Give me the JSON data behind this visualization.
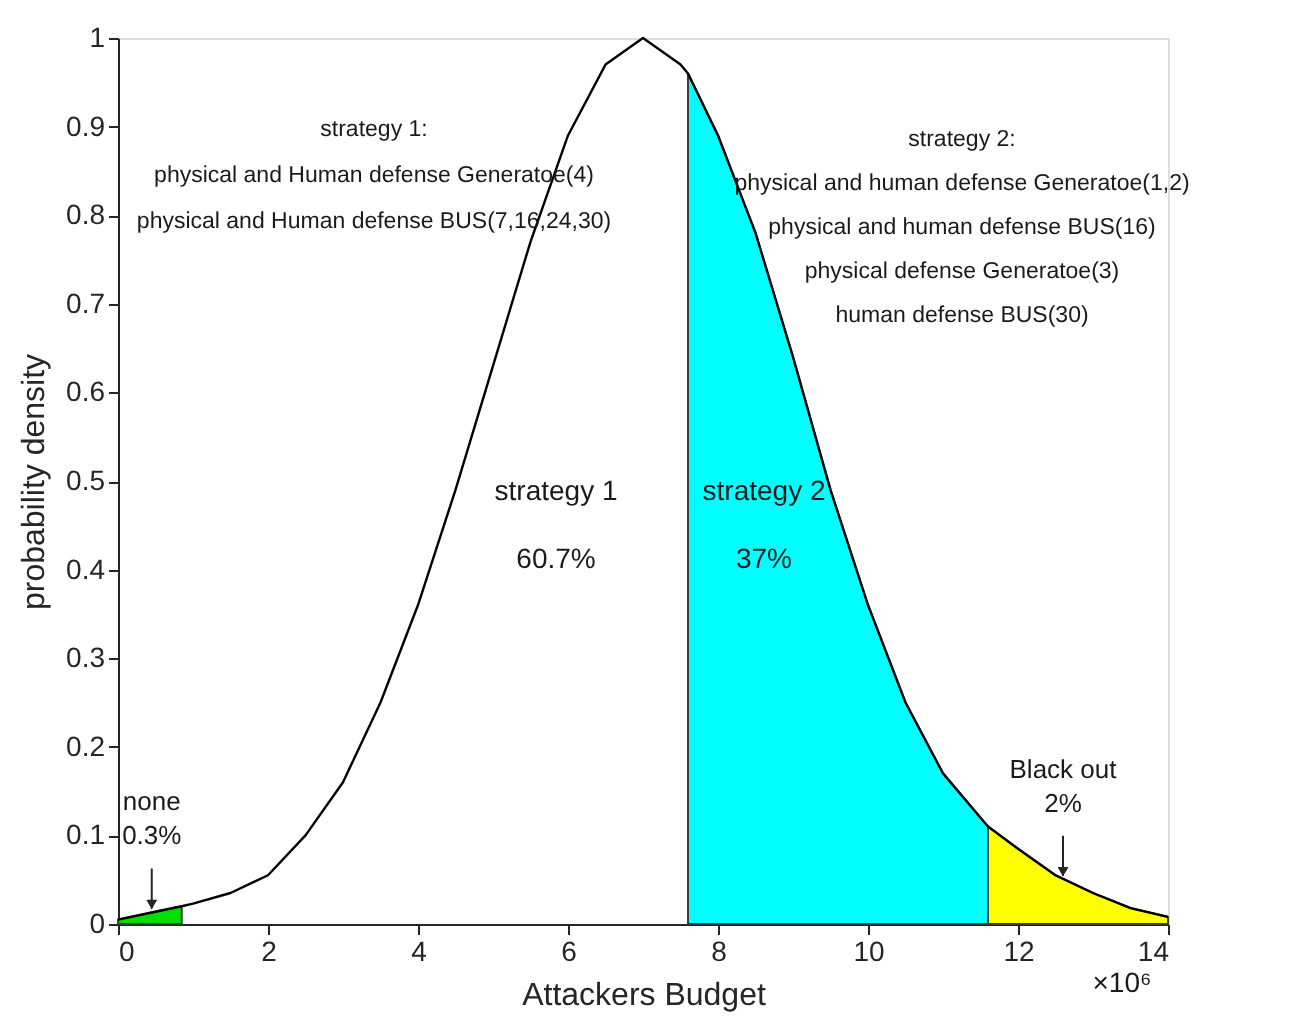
{
  "chart_data": {
    "type": "line",
    "xlabel": "Attackers Budget",
    "ylabel": "probability density",
    "xlim": [
      0,
      14
    ],
    "xticks": [
      0,
      2,
      4,
      6,
      8,
      10,
      12,
      14
    ],
    "ylim": [
      0,
      1
    ],
    "yticks": [
      0,
      0.1,
      0.2,
      0.3,
      0.4,
      0.5,
      0.6,
      0.7,
      0.8,
      0.9,
      1
    ],
    "grid": false,
    "marker": "none",
    "line_style": "solid",
    "series": [
      {
        "type": "area",
        "color": "#00e000",
        "x": [
          0,
          0.45,
          0.85
        ],
        "values": [
          0.005,
          0.013,
          0.02
        ]
      },
      {
        "type": "area",
        "color": "#00ffff",
        "x": [
          7.6,
          8,
          8.5,
          9,
          9.5,
          10,
          10.5,
          11,
          11.5,
          11.6
        ],
        "values": [
          0.96,
          0.89,
          0.78,
          0.64,
          0.49,
          0.36,
          0.25,
          0.17,
          0.12,
          0.11
        ]
      },
      {
        "type": "area",
        "color": "#ffff00",
        "x": [
          11.6,
          12,
          12.5,
          13,
          13.5,
          14
        ],
        "values": [
          0.11,
          0.085,
          0.055,
          0.035,
          0.018,
          0.008
        ]
      },
      {
        "type": "line",
        "color": "#000000",
        "x": [
          0,
          0.45,
          0.85,
          1,
          1.5,
          2,
          2.5,
          3,
          3.5,
          4,
          4.5,
          5,
          5.5,
          6,
          6.5,
          7,
          7.5,
          7.6,
          8,
          8.5,
          9,
          9.5,
          10,
          10.5,
          11,
          11.5,
          11.6,
          12,
          12.5,
          13,
          13.5,
          14
        ],
        "values": [
          0.005,
          0.013,
          0.02,
          0.023,
          0.035,
          0.055,
          0.1,
          0.16,
          0.25,
          0.36,
          0.49,
          0.63,
          0.77,
          0.89,
          0.97,
          1.0,
          0.97,
          0.96,
          0.89,
          0.78,
          0.64,
          0.49,
          0.36,
          0.25,
          0.17,
          0.12,
          0.11,
          0.085,
          0.055,
          0.035,
          0.018,
          0.008
        ]
      }
    ],
    "annotations": [
      "strategy 1:\nphysical and Human defense Generatoe(4)\nphysical and Human defense BUS(7,16,24,30)",
      "strategy 2:\nphysical and human defense Generatoe(1,2)\nphysical and human defense BUS(16)\nphysical defense Generatoe(3)\nhuman defense BUS(30)",
      "strategy 1",
      "60.7%",
      "strategy 2",
      "37%",
      "×10⁶",
      {
        "text": "none\n0.3%",
        "x": 0.45,
        "y": 0.013
      },
      {
        "text": "Black out\n2%",
        "x": 12.6,
        "y": 0.05
      }
    ]
  }
}
